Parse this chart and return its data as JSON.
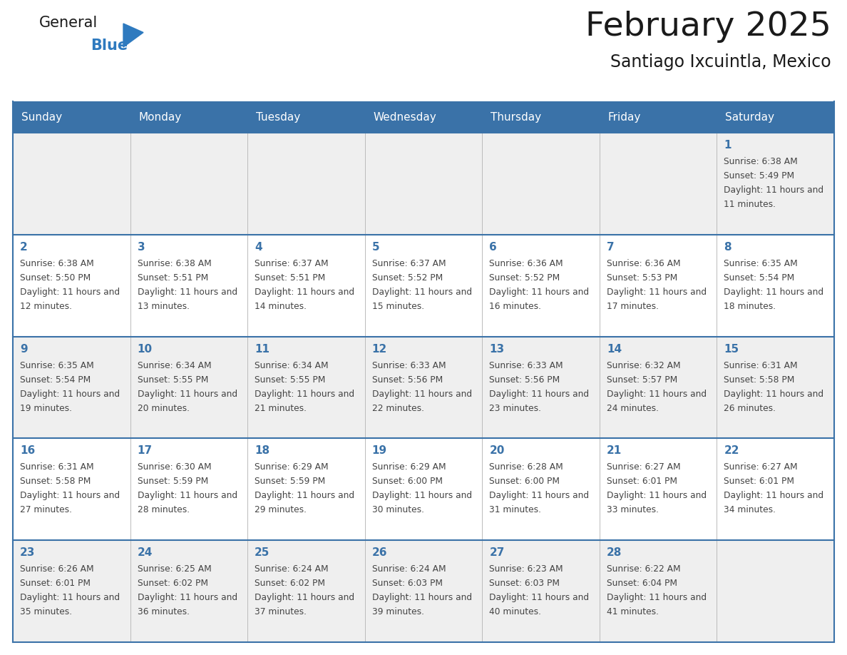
{
  "title": "February 2025",
  "subtitle": "Santiago Ixcuintla, Mexico",
  "days_of_week": [
    "Sunday",
    "Monday",
    "Tuesday",
    "Wednesday",
    "Thursday",
    "Friday",
    "Saturday"
  ],
  "header_bg": "#3a72a8",
  "header_text": "#ffffff",
  "row_bg_odd": "#efefef",
  "row_bg_even": "#ffffff",
  "cell_border": "#3a72a8",
  "day_number_color": "#3a72a8",
  "info_text_color": "#444444",
  "title_color": "#1a1a1a",
  "subtitle_color": "#1a1a1a",
  "logo_general_color": "#1a1a1a",
  "logo_blue_color": "#2e7abf",
  "calendar_data": [
    [
      {
        "day": "",
        "sunrise": "",
        "sunset": "",
        "daylight": ""
      },
      {
        "day": "",
        "sunrise": "",
        "sunset": "",
        "daylight": ""
      },
      {
        "day": "",
        "sunrise": "",
        "sunset": "",
        "daylight": ""
      },
      {
        "day": "",
        "sunrise": "",
        "sunset": "",
        "daylight": ""
      },
      {
        "day": "",
        "sunrise": "",
        "sunset": "",
        "daylight": ""
      },
      {
        "day": "",
        "sunrise": "",
        "sunset": "",
        "daylight": ""
      },
      {
        "day": "1",
        "sunrise": "6:38 AM",
        "sunset": "5:49 PM",
        "daylight": "11 hours and 11 minutes."
      }
    ],
    [
      {
        "day": "2",
        "sunrise": "6:38 AM",
        "sunset": "5:50 PM",
        "daylight": "11 hours and 12 minutes."
      },
      {
        "day": "3",
        "sunrise": "6:38 AM",
        "sunset": "5:51 PM",
        "daylight": "11 hours and 13 minutes."
      },
      {
        "day": "4",
        "sunrise": "6:37 AM",
        "sunset": "5:51 PM",
        "daylight": "11 hours and 14 minutes."
      },
      {
        "day": "5",
        "sunrise": "6:37 AM",
        "sunset": "5:52 PM",
        "daylight": "11 hours and 15 minutes."
      },
      {
        "day": "6",
        "sunrise": "6:36 AM",
        "sunset": "5:52 PM",
        "daylight": "11 hours and 16 minutes."
      },
      {
        "day": "7",
        "sunrise": "6:36 AM",
        "sunset": "5:53 PM",
        "daylight": "11 hours and 17 minutes."
      },
      {
        "day": "8",
        "sunrise": "6:35 AM",
        "sunset": "5:54 PM",
        "daylight": "11 hours and 18 minutes."
      }
    ],
    [
      {
        "day": "9",
        "sunrise": "6:35 AM",
        "sunset": "5:54 PM",
        "daylight": "11 hours and 19 minutes."
      },
      {
        "day": "10",
        "sunrise": "6:34 AM",
        "sunset": "5:55 PM",
        "daylight": "11 hours and 20 minutes."
      },
      {
        "day": "11",
        "sunrise": "6:34 AM",
        "sunset": "5:55 PM",
        "daylight": "11 hours and 21 minutes."
      },
      {
        "day": "12",
        "sunrise": "6:33 AM",
        "sunset": "5:56 PM",
        "daylight": "11 hours and 22 minutes."
      },
      {
        "day": "13",
        "sunrise": "6:33 AM",
        "sunset": "5:56 PM",
        "daylight": "11 hours and 23 minutes."
      },
      {
        "day": "14",
        "sunrise": "6:32 AM",
        "sunset": "5:57 PM",
        "daylight": "11 hours and 24 minutes."
      },
      {
        "day": "15",
        "sunrise": "6:31 AM",
        "sunset": "5:58 PM",
        "daylight": "11 hours and 26 minutes."
      }
    ],
    [
      {
        "day": "16",
        "sunrise": "6:31 AM",
        "sunset": "5:58 PM",
        "daylight": "11 hours and 27 minutes."
      },
      {
        "day": "17",
        "sunrise": "6:30 AM",
        "sunset": "5:59 PM",
        "daylight": "11 hours and 28 minutes."
      },
      {
        "day": "18",
        "sunrise": "6:29 AM",
        "sunset": "5:59 PM",
        "daylight": "11 hours and 29 minutes."
      },
      {
        "day": "19",
        "sunrise": "6:29 AM",
        "sunset": "6:00 PM",
        "daylight": "11 hours and 30 minutes."
      },
      {
        "day": "20",
        "sunrise": "6:28 AM",
        "sunset": "6:00 PM",
        "daylight": "11 hours and 31 minutes."
      },
      {
        "day": "21",
        "sunrise": "6:27 AM",
        "sunset": "6:01 PM",
        "daylight": "11 hours and 33 minutes."
      },
      {
        "day": "22",
        "sunrise": "6:27 AM",
        "sunset": "6:01 PM",
        "daylight": "11 hours and 34 minutes."
      }
    ],
    [
      {
        "day": "23",
        "sunrise": "6:26 AM",
        "sunset": "6:01 PM",
        "daylight": "11 hours and 35 minutes."
      },
      {
        "day": "24",
        "sunrise": "6:25 AM",
        "sunset": "6:02 PM",
        "daylight": "11 hours and 36 minutes."
      },
      {
        "day": "25",
        "sunrise": "6:24 AM",
        "sunset": "6:02 PM",
        "daylight": "11 hours and 37 minutes."
      },
      {
        "day": "26",
        "sunrise": "6:24 AM",
        "sunset": "6:03 PM",
        "daylight": "11 hours and 39 minutes."
      },
      {
        "day": "27",
        "sunrise": "6:23 AM",
        "sunset": "6:03 PM",
        "daylight": "11 hours and 40 minutes."
      },
      {
        "day": "28",
        "sunrise": "6:22 AM",
        "sunset": "6:04 PM",
        "daylight": "11 hours and 41 minutes."
      },
      {
        "day": "",
        "sunrise": "",
        "sunset": "",
        "daylight": ""
      }
    ]
  ]
}
